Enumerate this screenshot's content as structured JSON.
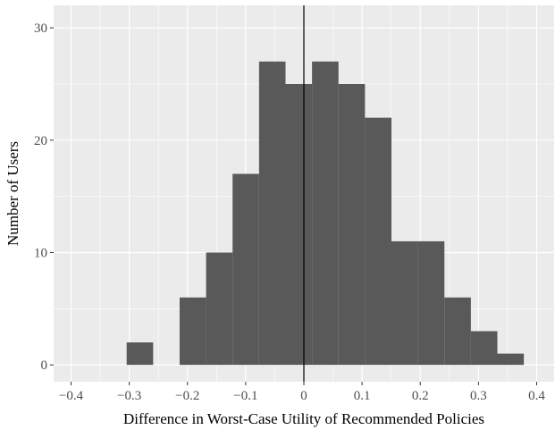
{
  "chart_data": {
    "type": "bar",
    "subtype": "histogram",
    "xlabel": "Difference in Worst-Case Utility of Recommended Policies",
    "ylabel": "Number of Users",
    "xlim": [
      -0.43,
      0.43
    ],
    "ylim": [
      -1.5,
      32
    ],
    "x_ticks": [
      -0.4,
      -0.3,
      -0.2,
      -0.1,
      0,
      0.1,
      0.2,
      0.3,
      0.4
    ],
    "x_tick_labels": [
      "−0.4",
      "−0.3",
      "−0.2",
      "−0.1",
      "0",
      "0.1",
      "0.2",
      "0.3",
      "0.4"
    ],
    "y_ticks": [
      0,
      10,
      20,
      30
    ],
    "y_tick_labels": [
      "0",
      "10",
      "20",
      "30"
    ],
    "bin_width": 0.0455,
    "bins": [
      {
        "x0": -0.3045,
        "x1": -0.259,
        "count": 2
      },
      {
        "x0": -0.259,
        "x1": -0.2135,
        "count": 0
      },
      {
        "x0": -0.2135,
        "x1": -0.168,
        "count": 6
      },
      {
        "x0": -0.168,
        "x1": -0.1225,
        "count": 10
      },
      {
        "x0": -0.1225,
        "x1": -0.077,
        "count": 17
      },
      {
        "x0": -0.077,
        "x1": -0.0315,
        "count": 27
      },
      {
        "x0": -0.0315,
        "x1": 0.014,
        "count": 25
      },
      {
        "x0": 0.014,
        "x1": 0.0595,
        "count": 27
      },
      {
        "x0": 0.0595,
        "x1": 0.105,
        "count": 25
      },
      {
        "x0": 0.105,
        "x1": 0.1505,
        "count": 22
      },
      {
        "x0": 0.1505,
        "x1": 0.196,
        "count": 11
      },
      {
        "x0": 0.196,
        "x1": 0.2415,
        "count": 11
      },
      {
        "x0": 0.2415,
        "x1": 0.287,
        "count": 6
      },
      {
        "x0": 0.287,
        "x1": 0.3325,
        "count": 3
      },
      {
        "x0": 0.3325,
        "x1": 0.378,
        "count": 1
      }
    ],
    "vline_x": 0,
    "grid": true,
    "colors": {
      "panel": "#ebebeb",
      "grid_major": "#ffffff",
      "bar_fill": "#595959",
      "vline": "#000000"
    }
  }
}
